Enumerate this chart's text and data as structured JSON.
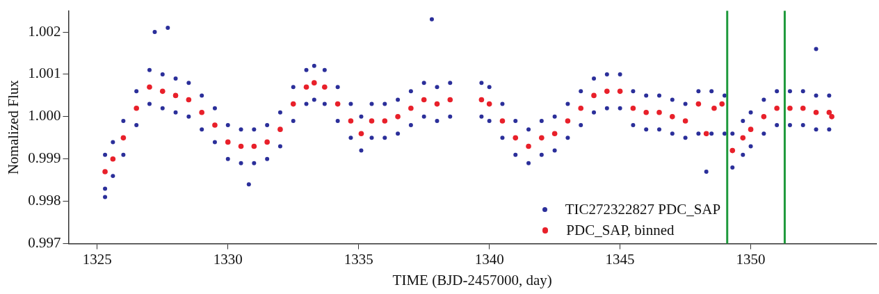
{
  "chart_data": {
    "type": "scatter",
    "xlabel": "TIME (BJD-2457000, day)",
    "ylabel": "Nomalized Flux",
    "xlim": [
      1323.9,
      1354.8
    ],
    "xticks": [
      1325,
      1330,
      1335,
      1340,
      1345,
      1350
    ],
    "ylim": [
      0.997,
      1.0025
    ],
    "yticks": [
      {
        "value": 0.997,
        "label": "0.997"
      },
      {
        "value": 0.998,
        "label": "0.998"
      },
      {
        "value": 0.999,
        "label": "0.999"
      },
      {
        "value": 1,
        "label": "1.000"
      },
      {
        "value": 1.001,
        "label": "1.001"
      },
      {
        "value": 1.002,
        "label": "1.002"
      }
    ],
    "grid": false,
    "legend": "bottom right",
    "marker": "circle",
    "ref_lines": [
      {
        "axis": "x",
        "value": 1349.1,
        "color": "#1f9a3c"
      },
      {
        "axis": "x",
        "value": 1351.3,
        "color": "#1f9a3c"
      }
    ],
    "series": [
      {
        "name": "TIC272322827 PDC_SAP",
        "color": "#2b2f9a",
        "x": [
          1325.3,
          1325.3,
          1325.6,
          1325.6,
          1326.0,
          1326.0,
          1326.5,
          1326.5,
          1327.0,
          1327.0,
          1327.5,
          1327.5,
          1328,
          1328,
          1328.5,
          1328.5,
          1329,
          1329,
          1329.5,
          1329.5,
          1330,
          1330,
          1330.5,
          1330.5,
          1331,
          1331,
          1331.5,
          1331.5,
          1332,
          1332,
          1332.5,
          1332.5,
          1333,
          1333,
          1333.3,
          1333.3,
          1333.7,
          1333.7,
          1334.2,
          1334.2,
          1334.7,
          1334.7,
          1335.1,
          1335.1,
          1335.5,
          1335.5,
          1336,
          1336,
          1336.5,
          1336.5,
          1337,
          1337,
          1337.5,
          1337.5,
          1338,
          1338,
          1338.5,
          1338.5,
          1339.7,
          1339.7,
          1340,
          1340,
          1340.5,
          1340.5,
          1341,
          1341,
          1341.5,
          1341.5,
          1342,
          1342,
          1342.5,
          1342.5,
          1343,
          1343,
          1343.5,
          1343.5,
          1344,
          1344,
          1344.5,
          1344.5,
          1345,
          1345,
          1345.5,
          1345.5,
          1346,
          1346,
          1346.5,
          1346.5,
          1347,
          1347,
          1347.5,
          1347.5,
          1348,
          1348,
          1348.5,
          1348.5,
          1349,
          1349,
          1349.3,
          1349.3,
          1349.7,
          1349.7,
          1350,
          1350,
          1350.5,
          1350.5,
          1351,
          1351,
          1351.5,
          1351.5,
          1352,
          1352,
          1352.5,
          1352.5,
          1353,
          1353,
          1327.2,
          1327.7,
          1337.8,
          1325.3,
          1330.8,
          1348.3,
          1352.5
        ],
        "values": [
          0.9991,
          0.9983,
          0.9994,
          0.9986,
          0.9999,
          0.9991,
          1.0006,
          0.9998,
          1.0011,
          1.0003,
          1.001,
          1.0002,
          1.0009,
          1.0001,
          1.0008,
          1.0,
          1.0005,
          0.9997,
          1.0002,
          0.9994,
          0.9998,
          0.999,
          0.9997,
          0.9989,
          0.9997,
          0.9989,
          0.9998,
          0.999,
          1.0001,
          0.9993,
          1.0007,
          0.9999,
          1.0011,
          1.0003,
          1.0012,
          1.0004,
          1.0011,
          1.0003,
          1.0007,
          0.9999,
          1.0003,
          0.9995,
          1.0,
          0.9992,
          1.0003,
          0.9995,
          1.0003,
          0.9995,
          1.0004,
          0.9996,
          1.0006,
          0.9998,
          1.0008,
          1.0,
          1.0007,
          0.9999,
          1.0008,
          1.0,
          1.0008,
          1.0,
          1.0007,
          0.9999,
          1.0003,
          0.9995,
          0.9999,
          0.9991,
          0.9997,
          0.9989,
          0.9999,
          0.9991,
          1.0,
          0.9992,
          1.0003,
          0.9995,
          1.0006,
          0.9998,
          1.0009,
          1.0001,
          1.001,
          1.0002,
          1.001,
          1.0002,
          1.0006,
          0.9998,
          1.0005,
          0.9997,
          1.0005,
          0.9997,
          1.0004,
          0.9996,
          1.0003,
          0.9995,
          1.0006,
          0.9996,
          1.0006,
          0.9996,
          1.0005,
          0.9996,
          0.9996,
          0.9988,
          0.9999,
          0.9991,
          1.0001,
          0.9993,
          1.0004,
          0.9996,
          1.0006,
          0.9998,
          1.0006,
          0.9998,
          1.0006,
          0.9998,
          1.0005,
          0.9997,
          1.0005,
          0.9997,
          1.002,
          1.0021,
          1.0023,
          0.9981,
          0.9984,
          0.9987,
          1.0016
        ]
      },
      {
        "name": "PDC_SAP, binned",
        "color": "#e8202a",
        "x": [
          1325.3,
          1325.6,
          1326.0,
          1326.5,
          1327.0,
          1327.5,
          1328,
          1328.5,
          1329,
          1329.5,
          1330,
          1330.5,
          1331,
          1331.5,
          1332,
          1332.5,
          1333,
          1333.3,
          1333.7,
          1334.2,
          1334.7,
          1335.1,
          1335.5,
          1336,
          1336.5,
          1337,
          1337.5,
          1338,
          1338.5,
          1339.7,
          1340,
          1340.5,
          1341,
          1341.5,
          1342,
          1342.5,
          1343,
          1343.5,
          1344,
          1344.5,
          1345,
          1345.5,
          1346,
          1346.5,
          1347,
          1347.5,
          1348,
          1348.3,
          1348.6,
          1348.9,
          1349.3,
          1349.7,
          1350,
          1350.5,
          1351,
          1351.5,
          1352,
          1352.5,
          1353,
          1353.1
        ],
        "values": [
          0.9987,
          0.999,
          0.9995,
          1.0002,
          1.0007,
          1.0006,
          1.0005,
          1.0004,
          1.0001,
          0.9998,
          0.9994,
          0.9993,
          0.9993,
          0.9994,
          0.9997,
          1.0003,
          1.0007,
          1.0008,
          1.0007,
          1.0003,
          0.9999,
          0.9996,
          0.9999,
          0.9999,
          1.0,
          1.0002,
          1.0004,
          1.0003,
          1.0004,
          1.0004,
          1.0003,
          0.9999,
          0.9995,
          0.9993,
          0.9995,
          0.9996,
          0.9999,
          1.0002,
          1.0005,
          1.0006,
          1.0006,
          1.0002,
          1.0001,
          1.0001,
          1.0,
          0.9999,
          1.0003,
          0.9996,
          1.0002,
          1.0003,
          0.9992,
          0.9995,
          0.9997,
          1.0,
          1.0002,
          1.0002,
          1.0002,
          1.0001,
          1.0001,
          1.0
        ]
      }
    ]
  }
}
